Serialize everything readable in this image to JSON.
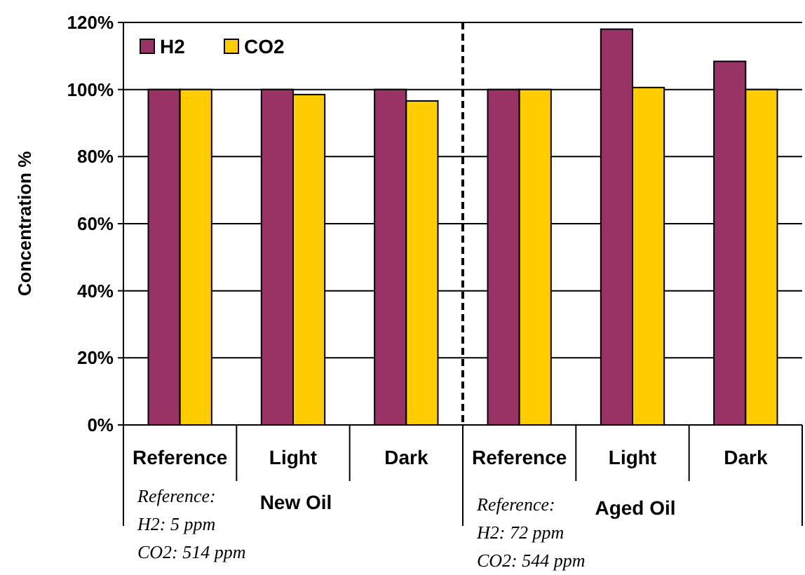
{
  "chart_data": {
    "type": "bar",
    "ylabel": "Concentration %",
    "categories": [
      "Reference",
      "Light",
      "Dark",
      "Reference",
      "Light",
      "Dark"
    ],
    "series": [
      {
        "name": "H2",
        "color": "#993366",
        "values": [
          100,
          100,
          100,
          100,
          118,
          108.4
        ]
      },
      {
        "name": "CO2",
        "color": "#ffcc00",
        "values": [
          100,
          98.5,
          96.6,
          100,
          100.6,
          100
        ]
      }
    ],
    "ylim": [
      0,
      120
    ],
    "yticks": [
      {
        "value": 0,
        "label": "0%"
      },
      {
        "value": 20,
        "label": "20%"
      },
      {
        "value": 40,
        "label": "40%"
      },
      {
        "value": 60,
        "label": "60%"
      },
      {
        "value": 80,
        "label": "80%"
      },
      {
        "value": 100,
        "label": "100%"
      },
      {
        "value": 120,
        "label": "120%"
      }
    ],
    "grid": "y",
    "legend": "top left",
    "annotations": [
      "New Oil",
      "Aged Oil",
      "Reference:\nH2: 5 ppm\nCO2: 514 ppm",
      "Reference:\nH2: 72 ppm\nCO2: 544 ppm"
    ]
  }
}
